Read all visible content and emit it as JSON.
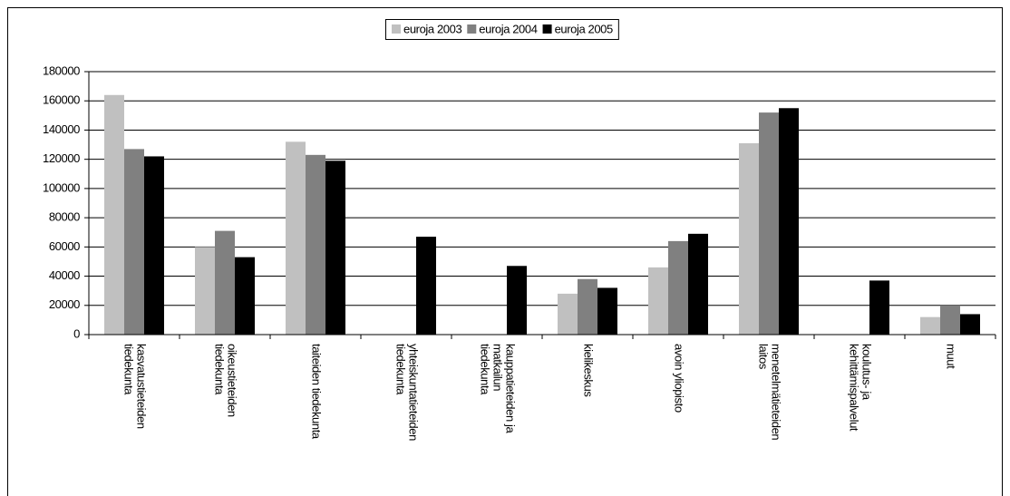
{
  "chart_data": {
    "type": "bar",
    "categories": [
      [
        "kasvatustieteiden",
        "tiedekunta"
      ],
      [
        "oikeustieteiden",
        "tiedekunta"
      ],
      [
        "taiteiden tiedekunta"
      ],
      [
        "yhteiskuntatieteiden",
        "tiedekunta"
      ],
      [
        "kauppatieteiden ja",
        "matkailun",
        "tiedekunta"
      ],
      [
        "kielikeskus"
      ],
      [
        "avoin yliopisto"
      ],
      [
        "menetelmätieteiden",
        "laitos"
      ],
      [
        "koulutus- ja",
        "kehittämispalvelut"
      ],
      [
        "muut"
      ]
    ],
    "series": [
      {
        "name": "euroja 2003",
        "color": "#c0c0c0",
        "values": [
          164000,
          60000,
          132000,
          0,
          0,
          28000,
          46000,
          131000,
          0,
          12000
        ]
      },
      {
        "name": "euroja 2004",
        "color": "#808080",
        "values": [
          127000,
          71000,
          123000,
          0,
          0,
          38000,
          64000,
          152000,
          0,
          20000
        ]
      },
      {
        "name": "euroja 2005",
        "color": "#000000",
        "values": [
          122000,
          53000,
          119000,
          67000,
          47000,
          32000,
          69000,
          155000,
          37000,
          14000
        ]
      }
    ],
    "ylim": [
      0,
      180000
    ],
    "yticks": [
      0,
      20000,
      40000,
      60000,
      80000,
      100000,
      120000,
      140000,
      160000,
      180000
    ],
    "grid": true,
    "legend": "top"
  }
}
